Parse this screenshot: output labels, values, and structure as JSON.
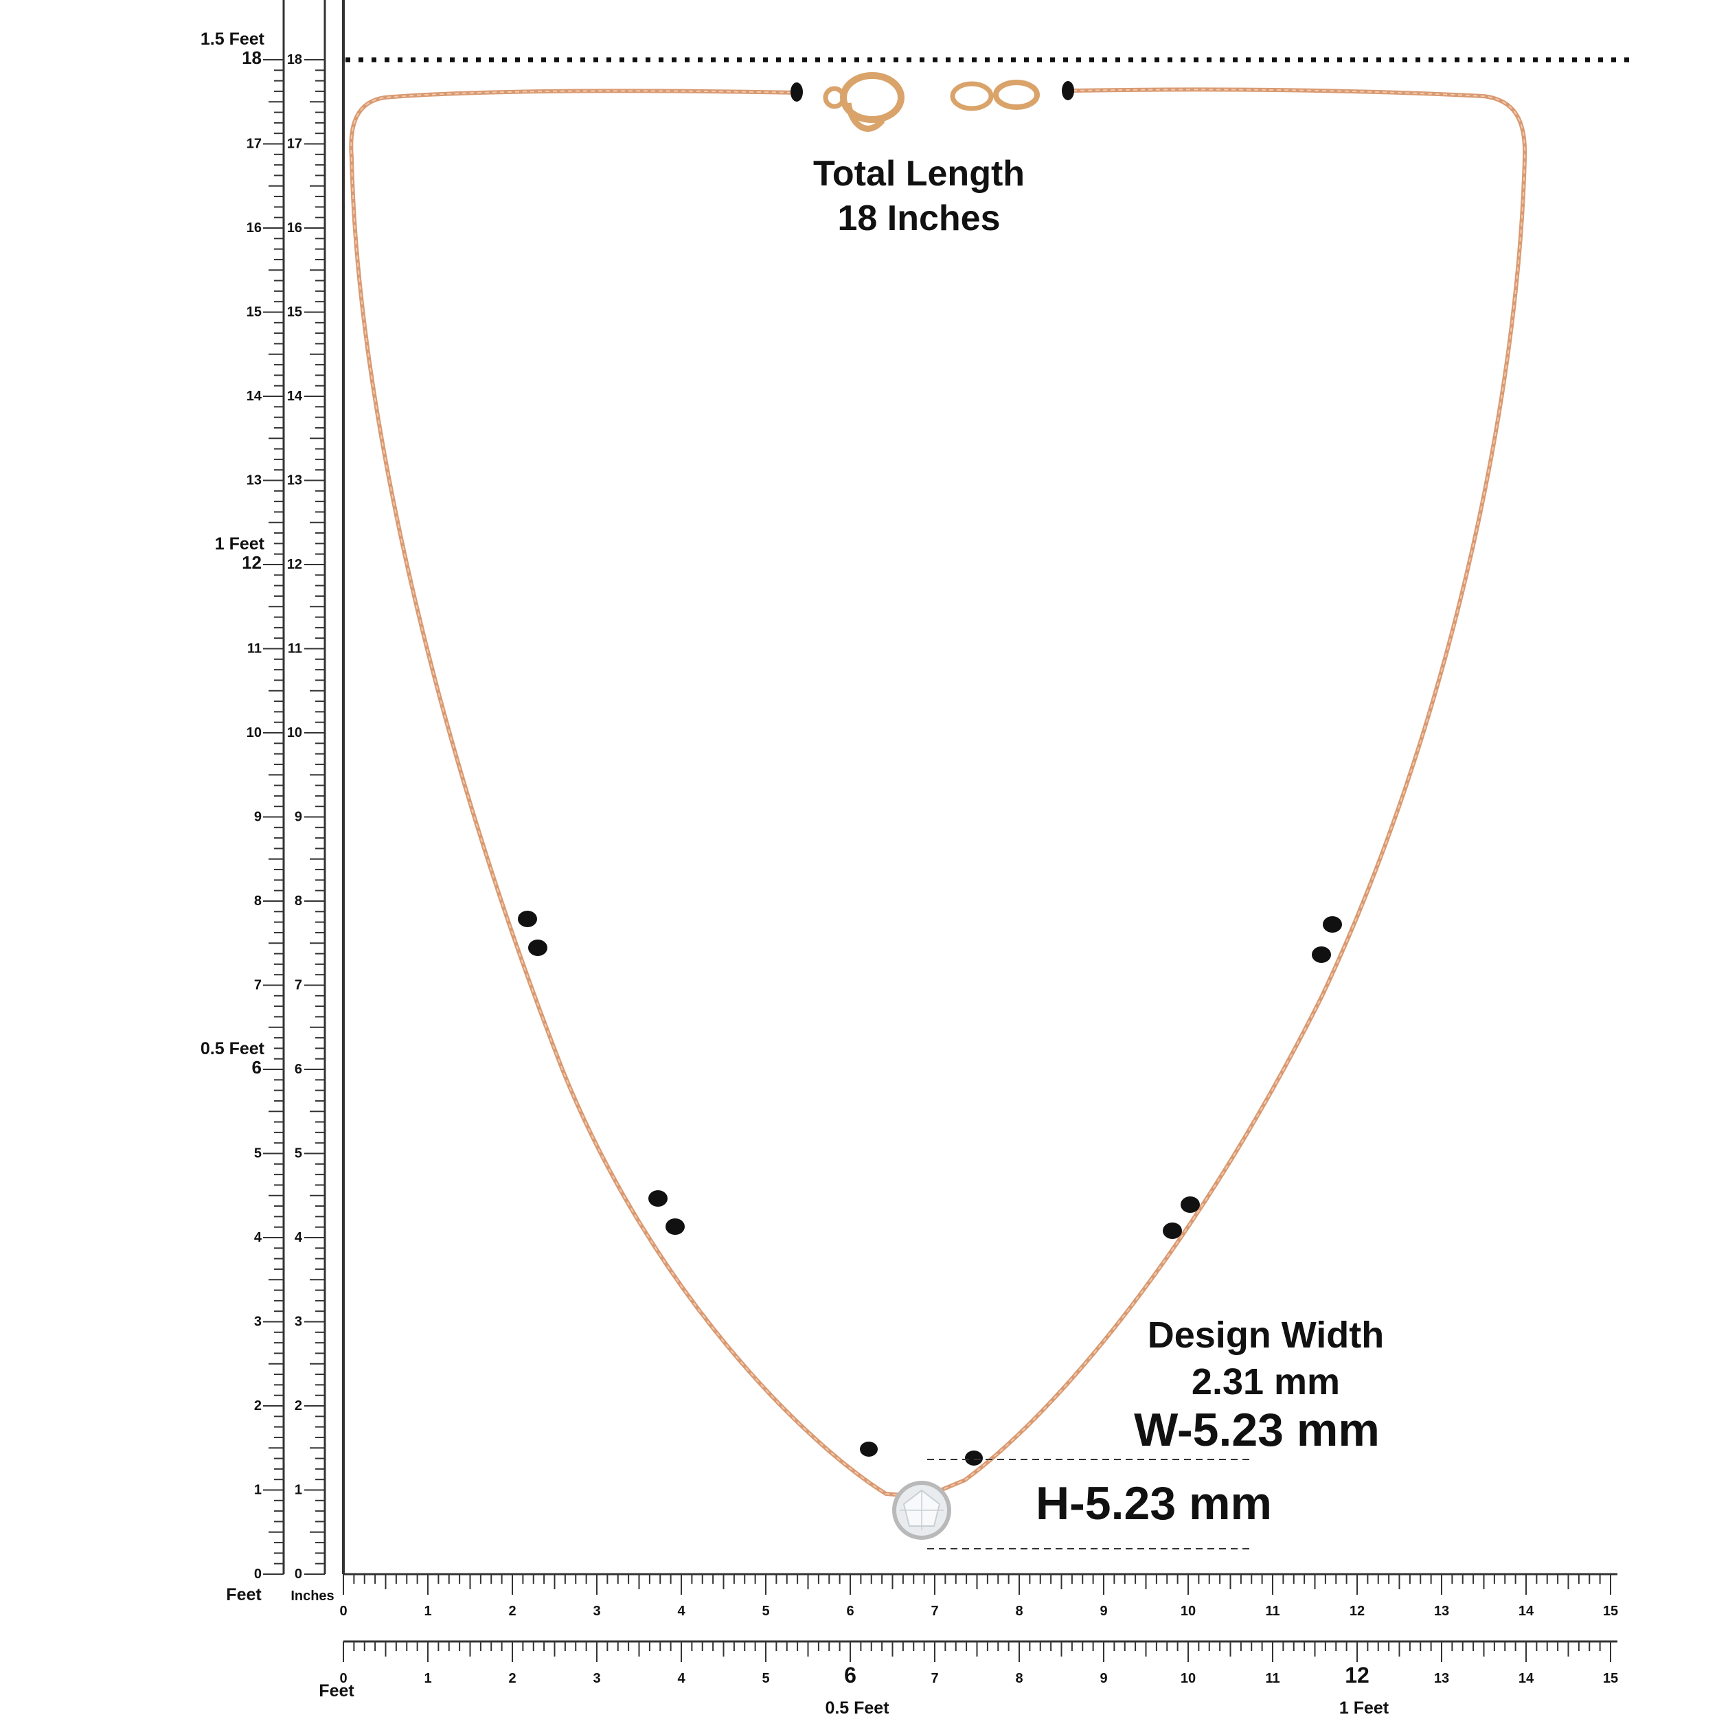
{
  "ruler_left": {
    "outer_ticks": [
      "0",
      "1",
      "2",
      "3",
      "4",
      "5",
      "6",
      "7",
      "8",
      "9",
      "10",
      "11",
      "12",
      "13",
      "14",
      "15",
      "16",
      "17",
      "18"
    ],
    "inner_ticks": [
      "0",
      "1",
      "2",
      "3",
      "4",
      "5",
      "6",
      "7",
      "8",
      "9",
      "10",
      "11",
      "12",
      "13",
      "14",
      "15",
      "16",
      "17",
      "18"
    ],
    "feet_marks": [
      {
        "inch": 6,
        "label": "0.5 Feet"
      },
      {
        "inch": 12,
        "label": "1 Feet"
      },
      {
        "inch": 18,
        "label": "1.5 Feet"
      }
    ],
    "unit_feet": "Feet",
    "unit_inches": "Inches"
  },
  "ruler_bottom_1": {
    "ticks": [
      "0",
      "1",
      "2",
      "3",
      "4",
      "5",
      "6",
      "7",
      "8",
      "9",
      "10",
      "11",
      "12",
      "13",
      "14",
      "15"
    ]
  },
  "ruler_bottom_2": {
    "ticks": [
      "0",
      "1",
      "2",
      "3",
      "4",
      "5",
      "6",
      "7",
      "8",
      "9",
      "10",
      "11",
      "12",
      "13",
      "14",
      "15"
    ],
    "unit_feet": "Feet",
    "feet_marks": [
      {
        "inch": 6,
        "label": "0.5 Feet"
      },
      {
        "inch": 12,
        "label": "1 Feet"
      }
    ]
  },
  "annotations": {
    "total_length_line1": "Total Length",
    "total_length_line2": "18 Inches",
    "design_width_line1": "Design Width",
    "design_width_line2": "2.31 mm",
    "width_label": "W-5.23 mm",
    "height_label": "H-5.23 mm"
  },
  "colors": {
    "chain": "#d99a72",
    "bead": "#111111",
    "ruler": "#333333",
    "stone": "#e8ecef"
  }
}
